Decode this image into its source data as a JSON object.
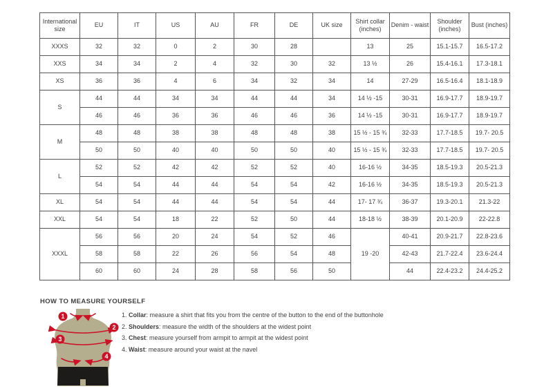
{
  "colors": {
    "accent_red": "#cd1126",
    "torso": "#b4ae8f",
    "shorts": "#1c1b1a",
    "table_border": "#55565a",
    "text": "#414042"
  },
  "table": {
    "headers": [
      "International size",
      "EU",
      "IT",
      "US",
      "AU",
      "FR",
      "DE",
      "UK size",
      "Shirt collar (inches)",
      "Denim - waist",
      "Shoulder (inches)",
      "Bust (inches)"
    ],
    "rows": [
      [
        "XXXS",
        "32",
        "32",
        "0",
        "2",
        "30",
        "28",
        "",
        "13",
        "25",
        "15.1-15.7",
        "16.5-17.2"
      ],
      [
        "XXS",
        "34",
        "34",
        "2",
        "4",
        "32",
        "30",
        "32",
        "13 ½",
        "26",
        "15.4-16.1",
        "17.3-18.1"
      ],
      [
        "XS",
        "36",
        "36",
        "4",
        "6",
        "34",
        "32",
        "34",
        "14",
        "27-29",
        "16.5-16.4",
        "18.1-18.9"
      ],
      [
        {
          "t": "S",
          "rowspan": 2
        },
        "44",
        "44",
        "34",
        "34",
        "44",
        "44",
        "34",
        "14 ½ -15",
        "30-31",
        "16.9-17.7",
        "18.9-19.7"
      ],
      [
        null,
        "46",
        "46",
        "36",
        "36",
        "46",
        "46",
        "36",
        "14 ½ -15",
        "30-31",
        "16.9-17.7",
        "18.9-19.7"
      ],
      [
        {
          "t": "M",
          "rowspan": 2
        },
        "48",
        "48",
        "38",
        "38",
        "48",
        "48",
        "38",
        "15 ½ - 15 ¾",
        "32-33",
        "17.7-18.5",
        "19.7- 20.5"
      ],
      [
        null,
        "50",
        "50",
        "40",
        "40",
        "50",
        "50",
        "40",
        "15 ½ - 15 ¾",
        "32-33",
        "17.7-18.5",
        "19.7- 20.5"
      ],
      [
        {
          "t": "L",
          "rowspan": 2
        },
        "52",
        "52",
        "42",
        "42",
        "52",
        "52",
        "40",
        "16-16 ½",
        "34-35",
        "18.5-19.3",
        "20.5-21.3"
      ],
      [
        null,
        "54",
        "54",
        "44",
        "44",
        "54",
        "54",
        "42",
        "16-16 ½",
        "34-35",
        "18.5-19.3",
        "20.5-21.3"
      ],
      [
        "XL",
        "54",
        "54",
        "44",
        "44",
        "54",
        "54",
        "44",
        "17- 17 ¾",
        "36-37",
        "19.3-20.1",
        "21.3-22"
      ],
      [
        "XXL",
        "54",
        "54",
        "18",
        "22",
        "52",
        "50",
        "44",
        "18-18 ½",
        "38-39",
        "20.1-20.9",
        "22-22.8"
      ],
      [
        {
          "t": "XXXL",
          "rowspan": 3
        },
        "56",
        "56",
        "20",
        "24",
        "54",
        "52",
        "46",
        {
          "t": "19 -20",
          "rowspan": 3
        },
        "40-41",
        "20.9-21.7",
        "22.8-23.6"
      ],
      [
        null,
        "58",
        "58",
        "22",
        "26",
        "56",
        "54",
        "48",
        null,
        "42-43",
        "21.7-22.4",
        "23.6-24.4"
      ],
      [
        null,
        "60",
        "60",
        "24",
        "28",
        "58",
        "56",
        "50",
        null,
        "44",
        "22.4-23.2",
        "24.4-25.2"
      ]
    ]
  },
  "measure": {
    "title": "HOW TO MEASURE YOURSELF",
    "markers": [
      "1",
      "2",
      "3",
      "4"
    ],
    "steps": [
      {
        "num": "1.",
        "label": "Collar",
        "text": ": measure a shirt that fits you from the centre of the button to the end of the buttonhole"
      },
      {
        "num": "2.",
        "label": "Shoulders",
        "text": ": measure the width of the shoulders at the widest point"
      },
      {
        "num": "3.",
        "label": "Chest",
        "text": ": measure yourself from armpit to armpit at the widest point"
      },
      {
        "num": "4.",
        "label": "Waist",
        "text": ": measure around your waist at the navel"
      }
    ]
  }
}
